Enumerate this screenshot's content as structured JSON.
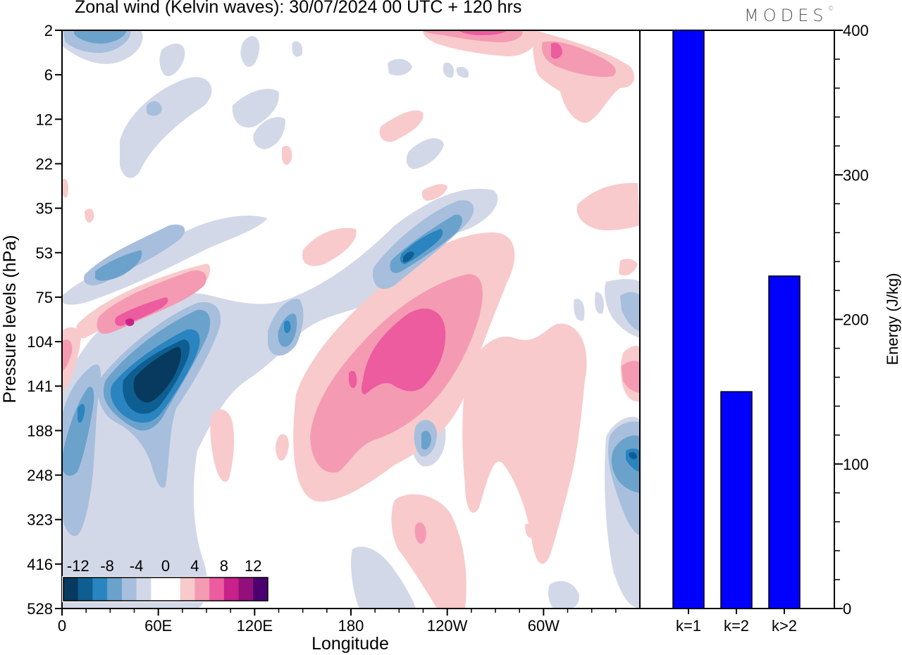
{
  "title": "Zonal wind (Kelvin waves):  30/07/2024  00 UTC  + 120 hrs",
  "logo": "MODES",
  "logo_mark": "©",
  "chart_data": [
    {
      "type": "heatmap",
      "xlabel": "Longitude",
      "ylabel": "Pressure levels (hPa)",
      "x_ticks": [
        "0",
        "60E",
        "120E",
        "180",
        "120W",
        "60W"
      ],
      "x_tick_values": [
        0,
        60,
        120,
        180,
        240,
        300
      ],
      "xlim": [
        0,
        360
      ],
      "y_ticks": [
        "2",
        "6",
        "12",
        "22",
        "35",
        "53",
        "75",
        "104",
        "141",
        "188",
        "248",
        "323",
        "416",
        "528"
      ],
      "colorbar": {
        "labels": [
          "-12",
          "-8",
          "-4",
          "0",
          "4",
          "8",
          "12"
        ],
        "levels": [
          -14,
          -12,
          -10,
          -8,
          -6,
          -4,
          -2,
          0,
          2,
          4,
          6,
          8,
          10,
          12,
          14
        ],
        "colors": [
          "#073a5e",
          "#0e5e92",
          "#2a84bf",
          "#6ba2cc",
          "#a7bfdd",
          "#d3d8e8",
          "#ffffff",
          "#ffffff",
          "#f8cacb",
          "#f59ab3",
          "#ec5c9e",
          "#c8218a",
          "#93107c",
          "#4c0070"
        ]
      },
      "features": [
        {
          "lon": 55,
          "level": "141",
          "value": -13
        },
        {
          "lon": 10,
          "level": "188",
          "value": -9
        },
        {
          "lon": 50,
          "level": "75",
          "value": 8
        },
        {
          "lon": 30,
          "level": "53",
          "value": -6
        },
        {
          "lon": 140,
          "level": "104",
          "value": -7
        },
        {
          "lon": 215,
          "level": "123",
          "value": 8
        },
        {
          "lon": 210,
          "level": "53",
          "value": -9
        },
        {
          "lon": 355,
          "level": "220",
          "value": -7
        },
        {
          "lon": 310,
          "level": "4",
          "value": 8
        },
        {
          "lon": 230,
          "level": "2",
          "value": 6
        },
        {
          "lon": 40,
          "level": "2",
          "value": -5
        }
      ]
    },
    {
      "type": "bar",
      "categories": [
        "k=1",
        "k=2",
        "k>2"
      ],
      "values": [
        400,
        150,
        230
      ],
      "ylabel": "Energy (J/kg)",
      "ylim": [
        0,
        400
      ],
      "y_ticks": [
        0,
        100,
        200,
        300,
        400
      ],
      "bar_color": "#0000ff"
    }
  ]
}
